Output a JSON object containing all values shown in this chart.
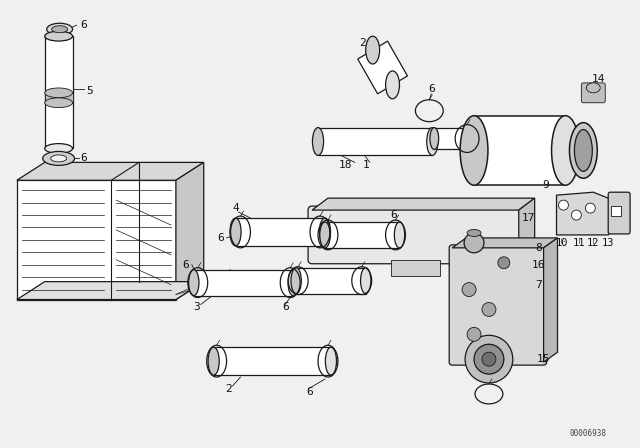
{
  "bg_color": "#f0f0f0",
  "line_color": "#1a1a1a",
  "text_color": "#111111",
  "watermark": "00006938",
  "fig_width": 6.4,
  "fig_height": 4.48,
  "dpi": 100
}
